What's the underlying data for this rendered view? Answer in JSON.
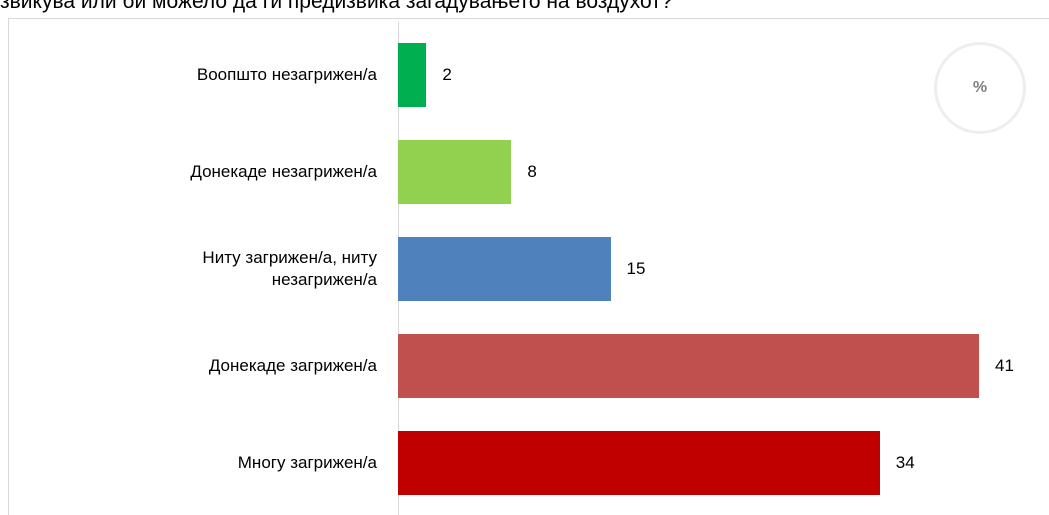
{
  "chart_data": {
    "type": "bar",
    "orientation": "horizontal",
    "title": "звикува или би можело да ги предизвика загадувањето на воздухот?",
    "unit_label": "%",
    "categories": [
      "Воопшто незагрижен/а",
      "Донекаде незагрижен/а",
      "Ниту загрижен/а, ниту незагрижен/а",
      "Донекаде загрижен/а",
      "Многу загрижен/а"
    ],
    "values": [
      2,
      8,
      15,
      41,
      34
    ],
    "colors": [
      "#00b050",
      "#92d050",
      "#4f81bd",
      "#c0504d",
      "#c00000"
    ]
  }
}
